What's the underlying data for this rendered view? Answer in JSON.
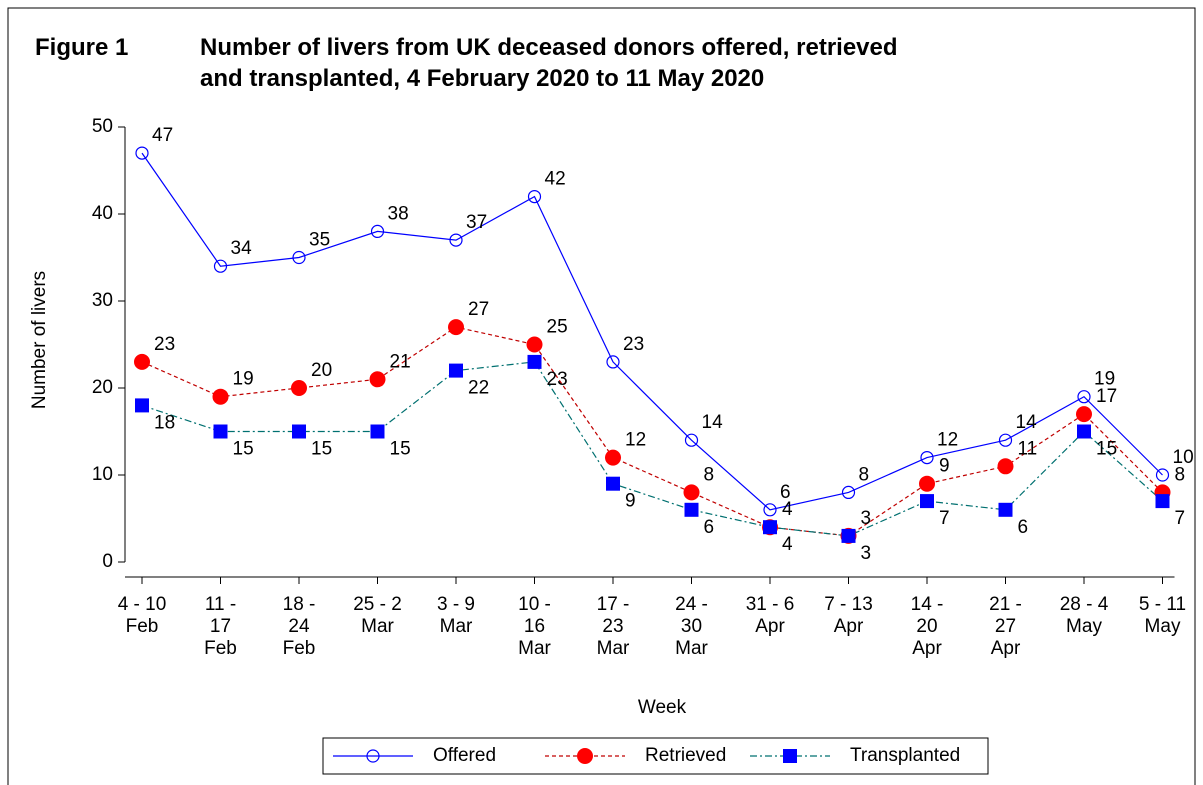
{
  "chart_data": {
    "type": "line",
    "figure_label": "Figure 1",
    "title": "Number of livers from UK deceased donors offered, retrieved\nand transplanted, 4 February 2020 to 11 May 2020",
    "xlabel": "Week",
    "ylabel": "Number of livers",
    "categories": [
      "4 - 10\nFeb",
      "11 -\n17\nFeb",
      "18 -\n24\nFeb",
      "25 - 2\nMar",
      "3 - 9\nMar",
      "10 -\n16\nMar",
      "17 -\n23\nMar",
      "24 -\n30\nMar",
      "31 - 6\nApr",
      "7 - 13\nApr",
      "14 -\n20\nApr",
      "21 -\n27\nApr",
      "28 - 4\nMay",
      "5 - 11\nMay"
    ],
    "series": [
      {
        "name": "Offered",
        "color": "#0000ff",
        "line_color": "#0000ff",
        "marker": "circle-open",
        "dash": "solid",
        "values": [
          47,
          34,
          35,
          38,
          37,
          42,
          23,
          14,
          6,
          8,
          12,
          14,
          19,
          10
        ]
      },
      {
        "name": "Retrieved",
        "color": "#ff0000",
        "line_color": "#c00000",
        "marker": "circle",
        "dash": "dashed",
        "values": [
          23,
          19,
          20,
          21,
          27,
          25,
          12,
          8,
          4,
          3,
          9,
          11,
          17,
          8
        ]
      },
      {
        "name": "Transplanted",
        "color": "#0000ff",
        "line_color": "#007070",
        "marker": "square",
        "dash": "dashdot",
        "values": [
          18,
          15,
          15,
          15,
          22,
          23,
          9,
          6,
          4,
          3,
          7,
          6,
          15,
          7
        ]
      }
    ],
    "ylim": [
      0,
      50
    ],
    "yticks": [
      0,
      10,
      20,
      30,
      40,
      50
    ],
    "legend": "bottom"
  }
}
